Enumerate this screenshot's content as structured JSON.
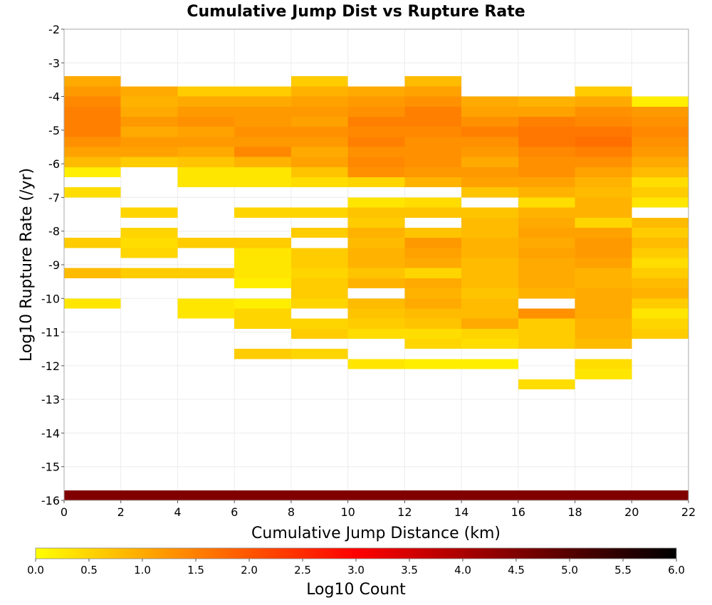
{
  "chart_data": {
    "type": "heatmap",
    "title": "Cumulative Jump Dist vs Rupture Rate",
    "xlabel": "Cumulative Jump Distance (km)",
    "ylabel": "Log10 Rupture Rate (/yr)",
    "xlim": [
      0,
      22
    ],
    "ylim": [
      -16,
      -2
    ],
    "x_ticks": [
      0,
      2,
      4,
      6,
      8,
      10,
      12,
      14,
      16,
      18,
      20,
      22
    ],
    "y_ticks": [
      -16,
      -15,
      -14,
      -13,
      -12,
      -11,
      -10,
      -9,
      -8,
      -7,
      -6,
      -5,
      -4,
      -3,
      -2
    ],
    "x_bin_width": 2,
    "y_bin_height": 0.3,
    "colorbar": {
      "label": "Log10 Count",
      "range": [
        0,
        6
      ],
      "ticks": [
        0.0,
        0.5,
        1.0,
        1.5,
        2.0,
        2.5,
        3.0,
        3.5,
        4.0,
        4.5,
        5.0,
        5.5,
        6.0
      ],
      "tick_labels": [
        "0.0",
        "0.5",
        "1.0",
        "1.5",
        "2.0",
        "2.5",
        "3.0",
        "3.5",
        "4.0",
        "4.5",
        "5.0",
        "5.5",
        "6.0"
      ],
      "colors": [
        "#ffff00",
        "#ff8000",
        "#ff0000",
        "#800000",
        "#000000"
      ]
    },
    "cells_value_encoding": "columns are x-bins starting at x = 0, 2, ..., 20; each column lists [y_bin_bottom, log10_count]",
    "columns": [
      [
        [
          -3.7,
          1.0
        ],
        [
          -4.0,
          1.2
        ],
        [
          -4.3,
          1.4
        ],
        [
          -4.6,
          1.5
        ],
        [
          -4.9,
          1.5
        ],
        [
          -5.2,
          1.5
        ],
        [
          -5.5,
          1.3
        ],
        [
          -5.8,
          1.1
        ],
        [
          -6.1,
          0.8
        ],
        [
          -6.4,
          0.2
        ],
        [
          -7.0,
          0.4
        ],
        [
          -8.5,
          0.6
        ],
        [
          -9.4,
          0.8
        ],
        [
          -10.3,
          0.3
        ],
        [
          -16.0,
          4.5
        ]
      ],
      [
        [
          -4.0,
          1.0
        ],
        [
          -4.3,
          0.9
        ],
        [
          -4.6,
          1.0
        ],
        [
          -4.9,
          1.2
        ],
        [
          -5.2,
          1.0
        ],
        [
          -5.5,
          1.2
        ],
        [
          -5.8,
          1.1
        ],
        [
          -6.1,
          0.6
        ],
        [
          -7.6,
          0.5
        ],
        [
          -8.2,
          0.5
        ],
        [
          -8.5,
          0.4
        ],
        [
          -8.8,
          0.5
        ],
        [
          -9.4,
          0.6
        ],
        [
          -16.0,
          4.5
        ]
      ],
      [
        [
          -4.0,
          0.6
        ],
        [
          -4.3,
          1.0
        ],
        [
          -4.6,
          1.2
        ],
        [
          -4.9,
          1.3
        ],
        [
          -5.2,
          1.1
        ],
        [
          -5.5,
          1.2
        ],
        [
          -5.8,
          1.0
        ],
        [
          -6.1,
          0.7
        ],
        [
          -6.4,
          0.3
        ],
        [
          -6.7,
          0.3
        ],
        [
          -8.5,
          0.6
        ],
        [
          -9.4,
          0.6
        ],
        [
          -10.3,
          0.3
        ],
        [
          -10.6,
          0.3
        ],
        [
          -16.0,
          4.5
        ]
      ],
      [
        [
          -4.0,
          0.6
        ],
        [
          -4.3,
          1.0
        ],
        [
          -4.6,
          1.2
        ],
        [
          -4.9,
          1.2
        ],
        [
          -5.2,
          1.3
        ],
        [
          -5.5,
          1.2
        ],
        [
          -5.8,
          1.4
        ],
        [
          -6.1,
          0.9
        ],
        [
          -6.4,
          0.3
        ],
        [
          -6.7,
          0.3
        ],
        [
          -7.6,
          0.5
        ],
        [
          -8.5,
          0.6
        ],
        [
          -8.8,
          0.3
        ],
        [
          -9.1,
          0.3
        ],
        [
          -9.4,
          0.3
        ],
        [
          -9.7,
          0.2
        ],
        [
          -10.3,
          0.2
        ],
        [
          -10.6,
          0.5
        ],
        [
          -10.9,
          0.5
        ],
        [
          -11.8,
          0.6
        ],
        [
          -16.0,
          4.5
        ]
      ],
      [
        [
          -3.7,
          0.6
        ],
        [
          -4.0,
          0.9
        ],
        [
          -4.3,
          1.1
        ],
        [
          -4.6,
          1.2
        ],
        [
          -4.9,
          1.1
        ],
        [
          -5.2,
          1.3
        ],
        [
          -5.5,
          1.2
        ],
        [
          -5.8,
          1.0
        ],
        [
          -6.1,
          1.1
        ],
        [
          -6.4,
          0.7
        ],
        [
          -6.7,
          0.4
        ],
        [
          -7.6,
          0.5
        ],
        [
          -8.2,
          0.6
        ],
        [
          -8.8,
          0.6
        ],
        [
          -9.1,
          0.6
        ],
        [
          -9.4,
          0.5
        ],
        [
          -9.7,
          0.6
        ],
        [
          -10.0,
          0.6
        ],
        [
          -10.3,
          0.5
        ],
        [
          -10.9,
          0.5
        ],
        [
          -11.2,
          0.6
        ],
        [
          -11.8,
          0.5
        ],
        [
          -16.0,
          4.5
        ]
      ],
      [
        [
          -4.0,
          1.0
        ],
        [
          -4.3,
          1.2
        ],
        [
          -4.6,
          1.3
        ],
        [
          -4.9,
          1.5
        ],
        [
          -5.2,
          1.4
        ],
        [
          -5.5,
          1.5
        ],
        [
          -5.8,
          1.3
        ],
        [
          -6.1,
          1.4
        ],
        [
          -6.4,
          1.3
        ],
        [
          -6.7,
          0.5
        ],
        [
          -7.3,
          0.3
        ],
        [
          -7.6,
          0.7
        ],
        [
          -7.9,
          0.6
        ],
        [
          -8.2,
          0.9
        ],
        [
          -8.5,
          0.8
        ],
        [
          -8.8,
          0.9
        ],
        [
          -9.1,
          0.9
        ],
        [
          -9.4,
          0.7
        ],
        [
          -9.7,
          0.9
        ],
        [
          -10.3,
          0.8
        ],
        [
          -10.6,
          0.7
        ],
        [
          -10.9,
          0.6
        ],
        [
          -11.2,
          0.4
        ],
        [
          -12.1,
          0.3
        ],
        [
          -16.0,
          4.5
        ]
      ],
      [
        [
          -3.7,
          0.8
        ],
        [
          -4.0,
          1.1
        ],
        [
          -4.3,
          1.3
        ],
        [
          -4.6,
          1.5
        ],
        [
          -4.9,
          1.5
        ],
        [
          -5.2,
          1.4
        ],
        [
          -5.5,
          1.3
        ],
        [
          -5.8,
          1.3
        ],
        [
          -6.1,
          1.3
        ],
        [
          -6.4,
          1.2
        ],
        [
          -6.7,
          0.9
        ],
        [
          -7.3,
          0.4
        ],
        [
          -7.6,
          0.7
        ],
        [
          -8.2,
          0.7
        ],
        [
          -8.5,
          1.2
        ],
        [
          -8.8,
          1.1
        ],
        [
          -9.1,
          1.0
        ],
        [
          -9.4,
          0.5
        ],
        [
          -9.7,
          1.0
        ],
        [
          -10.0,
          0.9
        ],
        [
          -10.3,
          1.0
        ],
        [
          -10.6,
          0.8
        ],
        [
          -10.9,
          0.7
        ],
        [
          -11.2,
          0.4
        ],
        [
          -11.5,
          0.5
        ],
        [
          -12.1,
          0.2
        ],
        [
          -16.0,
          4.5
        ]
      ],
      [
        [
          -4.3,
          1.0
        ],
        [
          -4.6,
          1.1
        ],
        [
          -4.9,
          1.3
        ],
        [
          -5.2,
          1.5
        ],
        [
          -5.5,
          1.3
        ],
        [
          -5.8,
          1.2
        ],
        [
          -6.1,
          1.0
        ],
        [
          -6.4,
          1.2
        ],
        [
          -6.7,
          1.1
        ],
        [
          -7.0,
          0.7
        ],
        [
          -7.6,
          0.7
        ],
        [
          -7.9,
          0.8
        ],
        [
          -8.2,
          0.8
        ],
        [
          -8.5,
          0.9
        ],
        [
          -8.8,
          0.9
        ],
        [
          -9.1,
          0.8
        ],
        [
          -9.4,
          0.8
        ],
        [
          -9.7,
          0.8
        ],
        [
          -10.0,
          0.7
        ],
        [
          -10.3,
          0.8
        ],
        [
          -10.6,
          0.8
        ],
        [
          -10.9,
          1.0
        ],
        [
          -11.2,
          0.5
        ],
        [
          -11.5,
          0.4
        ],
        [
          -12.1,
          0.2
        ],
        [
          -16.0,
          4.5
        ]
      ],
      [
        [
          -4.3,
          0.9
        ],
        [
          -4.6,
          1.1
        ],
        [
          -4.9,
          1.5
        ],
        [
          -5.2,
          1.6
        ],
        [
          -5.5,
          1.6
        ],
        [
          -5.8,
          1.4
        ],
        [
          -6.1,
          1.3
        ],
        [
          -6.4,
          1.3
        ],
        [
          -6.7,
          1.1
        ],
        [
          -7.0,
          0.9
        ],
        [
          -7.3,
          0.4
        ],
        [
          -7.6,
          0.9
        ],
        [
          -7.9,
          1.0
        ],
        [
          -8.2,
          1.1
        ],
        [
          -8.5,
          1.0
        ],
        [
          -8.8,
          1.1
        ],
        [
          -9.1,
          1.0
        ],
        [
          -9.4,
          1.0
        ],
        [
          -9.7,
          1.0
        ],
        [
          -10.0,
          0.9
        ],
        [
          -10.6,
          1.3
        ],
        [
          -10.9,
          0.6
        ],
        [
          -11.2,
          0.6
        ],
        [
          -11.5,
          0.6
        ],
        [
          -12.7,
          0.4
        ],
        [
          -16.0,
          4.5
        ]
      ],
      [
        [
          -4.0,
          0.6
        ],
        [
          -4.3,
          1.0
        ],
        [
          -4.6,
          1.3
        ],
        [
          -4.9,
          1.4
        ],
        [
          -5.2,
          1.6
        ],
        [
          -5.5,
          1.7
        ],
        [
          -5.8,
          1.5
        ],
        [
          -6.1,
          1.3
        ],
        [
          -6.4,
          1.1
        ],
        [
          -6.7,
          0.9
        ],
        [
          -7.0,
          0.8
        ],
        [
          -7.3,
          0.9
        ],
        [
          -7.6,
          0.9
        ],
        [
          -7.9,
          0.5
        ],
        [
          -8.2,
          1.1
        ],
        [
          -8.5,
          1.2
        ],
        [
          -8.8,
          1.2
        ],
        [
          -9.1,
          1.1
        ],
        [
          -9.4,
          0.9
        ],
        [
          -9.7,
          0.9
        ],
        [
          -10.0,
          1.0
        ],
        [
          -10.3,
          1.0
        ],
        [
          -10.6,
          1.0
        ],
        [
          -10.9,
          0.9
        ],
        [
          -11.2,
          0.9
        ],
        [
          -11.5,
          0.8
        ],
        [
          -12.1,
          0.4
        ],
        [
          -12.4,
          0.3
        ],
        [
          -16.0,
          4.5
        ]
      ],
      [
        [
          -4.3,
          0.2
        ],
        [
          -4.6,
          1.2
        ],
        [
          -4.9,
          1.3
        ],
        [
          -5.2,
          1.4
        ],
        [
          -5.5,
          1.3
        ],
        [
          -5.8,
          1.2
        ],
        [
          -6.1,
          1.0
        ],
        [
          -6.4,
          0.8
        ],
        [
          -6.7,
          0.4
        ],
        [
          -7.0,
          0.6
        ],
        [
          -7.3,
          0.3
        ],
        [
          -7.9,
          0.8
        ],
        [
          -8.2,
          0.6
        ],
        [
          -8.5,
          0.8
        ],
        [
          -8.8,
          0.6
        ],
        [
          -9.1,
          0.4
        ],
        [
          -9.4,
          0.6
        ],
        [
          -9.7,
          0.8
        ],
        [
          -10.0,
          0.9
        ],
        [
          -10.3,
          0.6
        ],
        [
          -10.6,
          0.3
        ],
        [
          -10.9,
          0.5
        ],
        [
          -11.2,
          0.6
        ],
        [
          -16.0,
          4.5
        ]
      ]
    ]
  }
}
